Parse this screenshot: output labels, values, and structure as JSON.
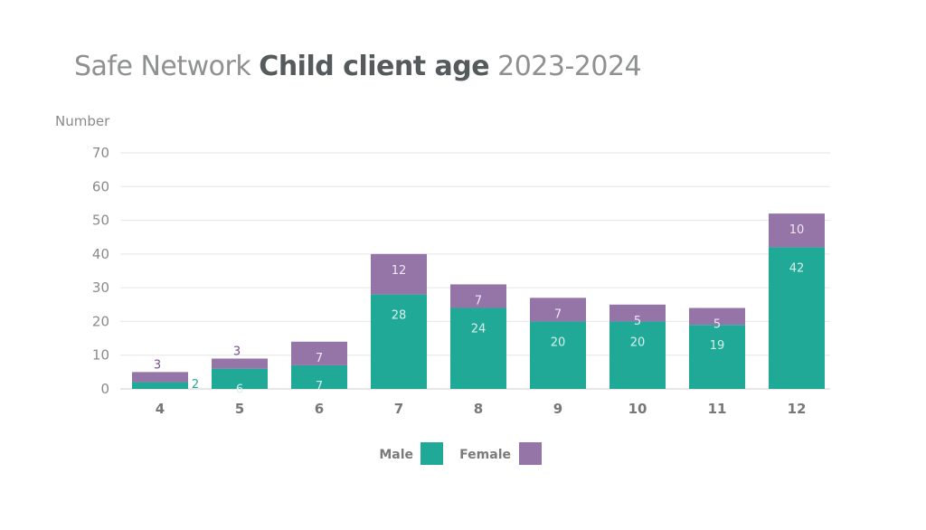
{
  "title": {
    "part1": "Safe Network",
    "part2": "Child client age",
    "part3": "2023-2024"
  },
  "chart_data": {
    "type": "bar",
    "stacked": true,
    "ylabel": "Number",
    "ylim": [
      0,
      70
    ],
    "yticks": [
      0,
      10,
      20,
      30,
      40,
      50,
      60,
      70
    ],
    "grid": true,
    "legend_position": "bottom",
    "categories": [
      "4",
      "5",
      "6",
      "7",
      "8",
      "9",
      "10",
      "11",
      "12"
    ],
    "series": [
      {
        "name": "Male",
        "color": "#21a998",
        "values": [
          2,
          6,
          7,
          28,
          24,
          20,
          20,
          19,
          42
        ]
      },
      {
        "name": "Female",
        "color": "#9574a8",
        "values": [
          3,
          3,
          7,
          12,
          7,
          7,
          5,
          5,
          10
        ]
      }
    ]
  }
}
